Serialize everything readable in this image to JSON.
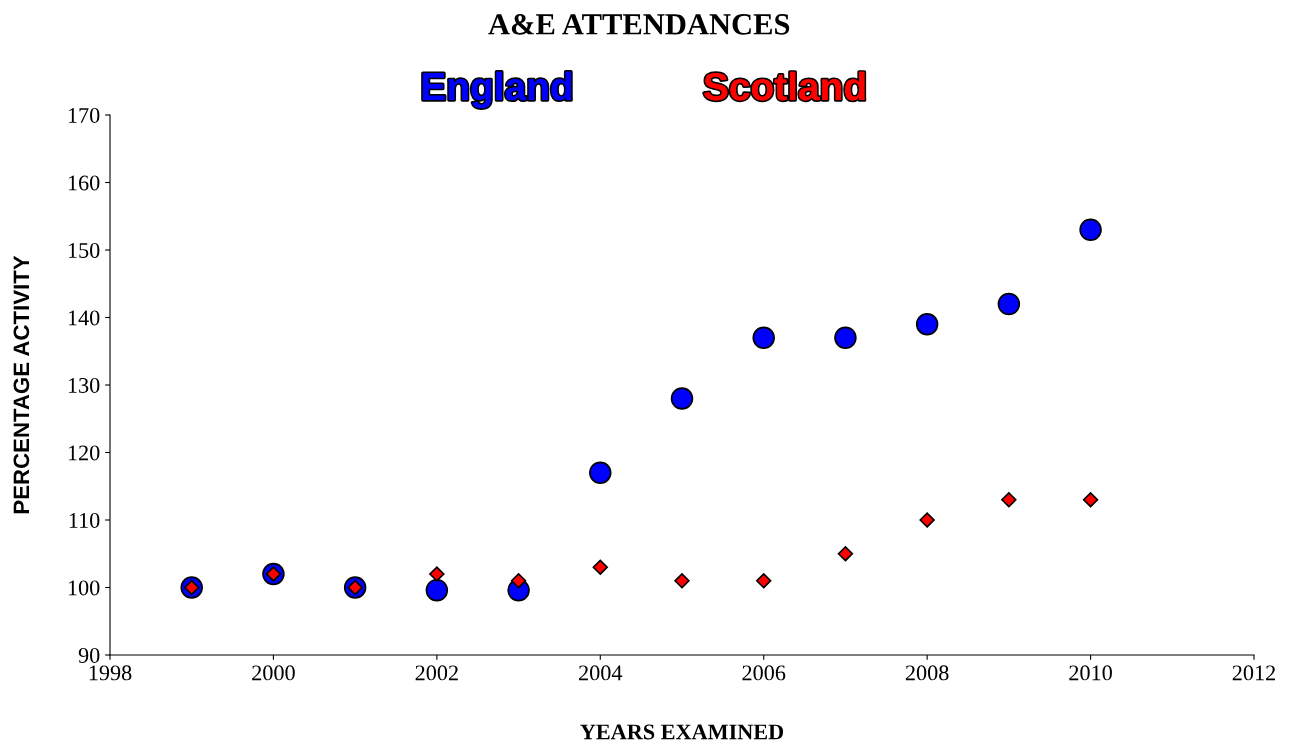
{
  "chart_data": {
    "type": "scatter",
    "title": "A&E ATTENDANCES",
    "xlabel": "YEARS EXAMINED",
    "ylabel": "PERCENTAGE ACTIVITY",
    "x": [
      1999,
      2000,
      2001,
      2002,
      2003,
      2004,
      2005,
      2006,
      2007,
      2008,
      2009,
      2010
    ],
    "series": [
      {
        "name": "England",
        "color": "#0000ff",
        "marker": "circle",
        "values": [
          100,
          102,
          100,
          99.6,
          99.6,
          117,
          128,
          137,
          137,
          139,
          142,
          153
        ]
      },
      {
        "name": "Scotland",
        "color": "#ff0000",
        "marker": "diamond",
        "values": [
          100,
          102,
          100,
          102,
          101,
          103,
          101,
          101,
          105,
          110,
          113,
          113
        ]
      }
    ],
    "xlim": [
      1998,
      2012
    ],
    "xticks": [
      1998,
      2000,
      2002,
      2004,
      2006,
      2008,
      2010,
      2012
    ],
    "ylim": [
      90,
      170
    ],
    "yticks": [
      90,
      100,
      110,
      120,
      130,
      140,
      150,
      160,
      170
    ],
    "grid": false,
    "legend": "top"
  }
}
